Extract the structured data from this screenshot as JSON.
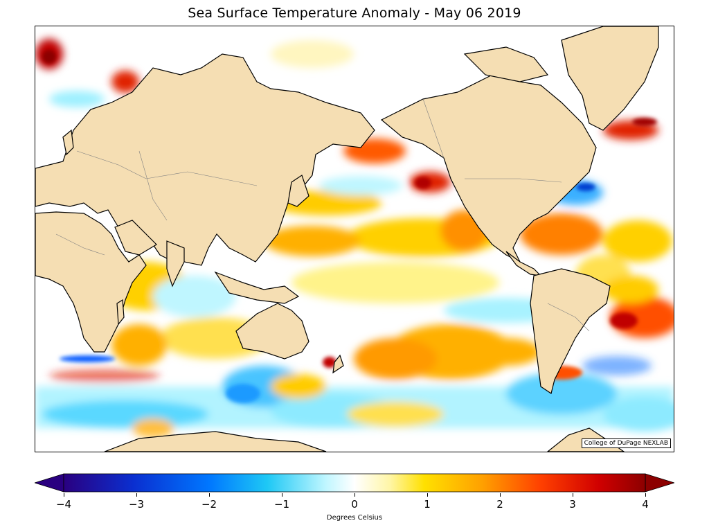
{
  "title": "Sea Surface Temperature Anomaly - May 06 2019",
  "credit": "College of DuPage NEXLAB",
  "colorbar": {
    "label": "Degrees Celsius",
    "min": -4,
    "max": 4,
    "ticks": [
      "−4",
      "−3",
      "−2",
      "−1",
      "0",
      "1",
      "2",
      "3",
      "4"
    ],
    "tick_values": [
      -4,
      -3,
      -2,
      -1,
      0,
      1,
      2,
      3,
      4
    ],
    "extend": "both",
    "stops": [
      "#2a0080",
      "#0a2fd0",
      "#0077ff",
      "#1ec8f5",
      "#bff6ff",
      "#ffffff",
      "#fff6a8",
      "#ffe000",
      "#ffa000",
      "#ff4000",
      "#d00000",
      "#8c0000"
    ]
  },
  "colors": {
    "land": "#f5deb3",
    "ocean_neutral": "#ffffff",
    "coastline": "#000000",
    "borders": "#808080"
  },
  "map": {
    "projection": "cylindrical",
    "center_longitude": "180",
    "features": [
      "coastlines",
      "country-borders",
      "sst-anomaly-field"
    ]
  }
}
